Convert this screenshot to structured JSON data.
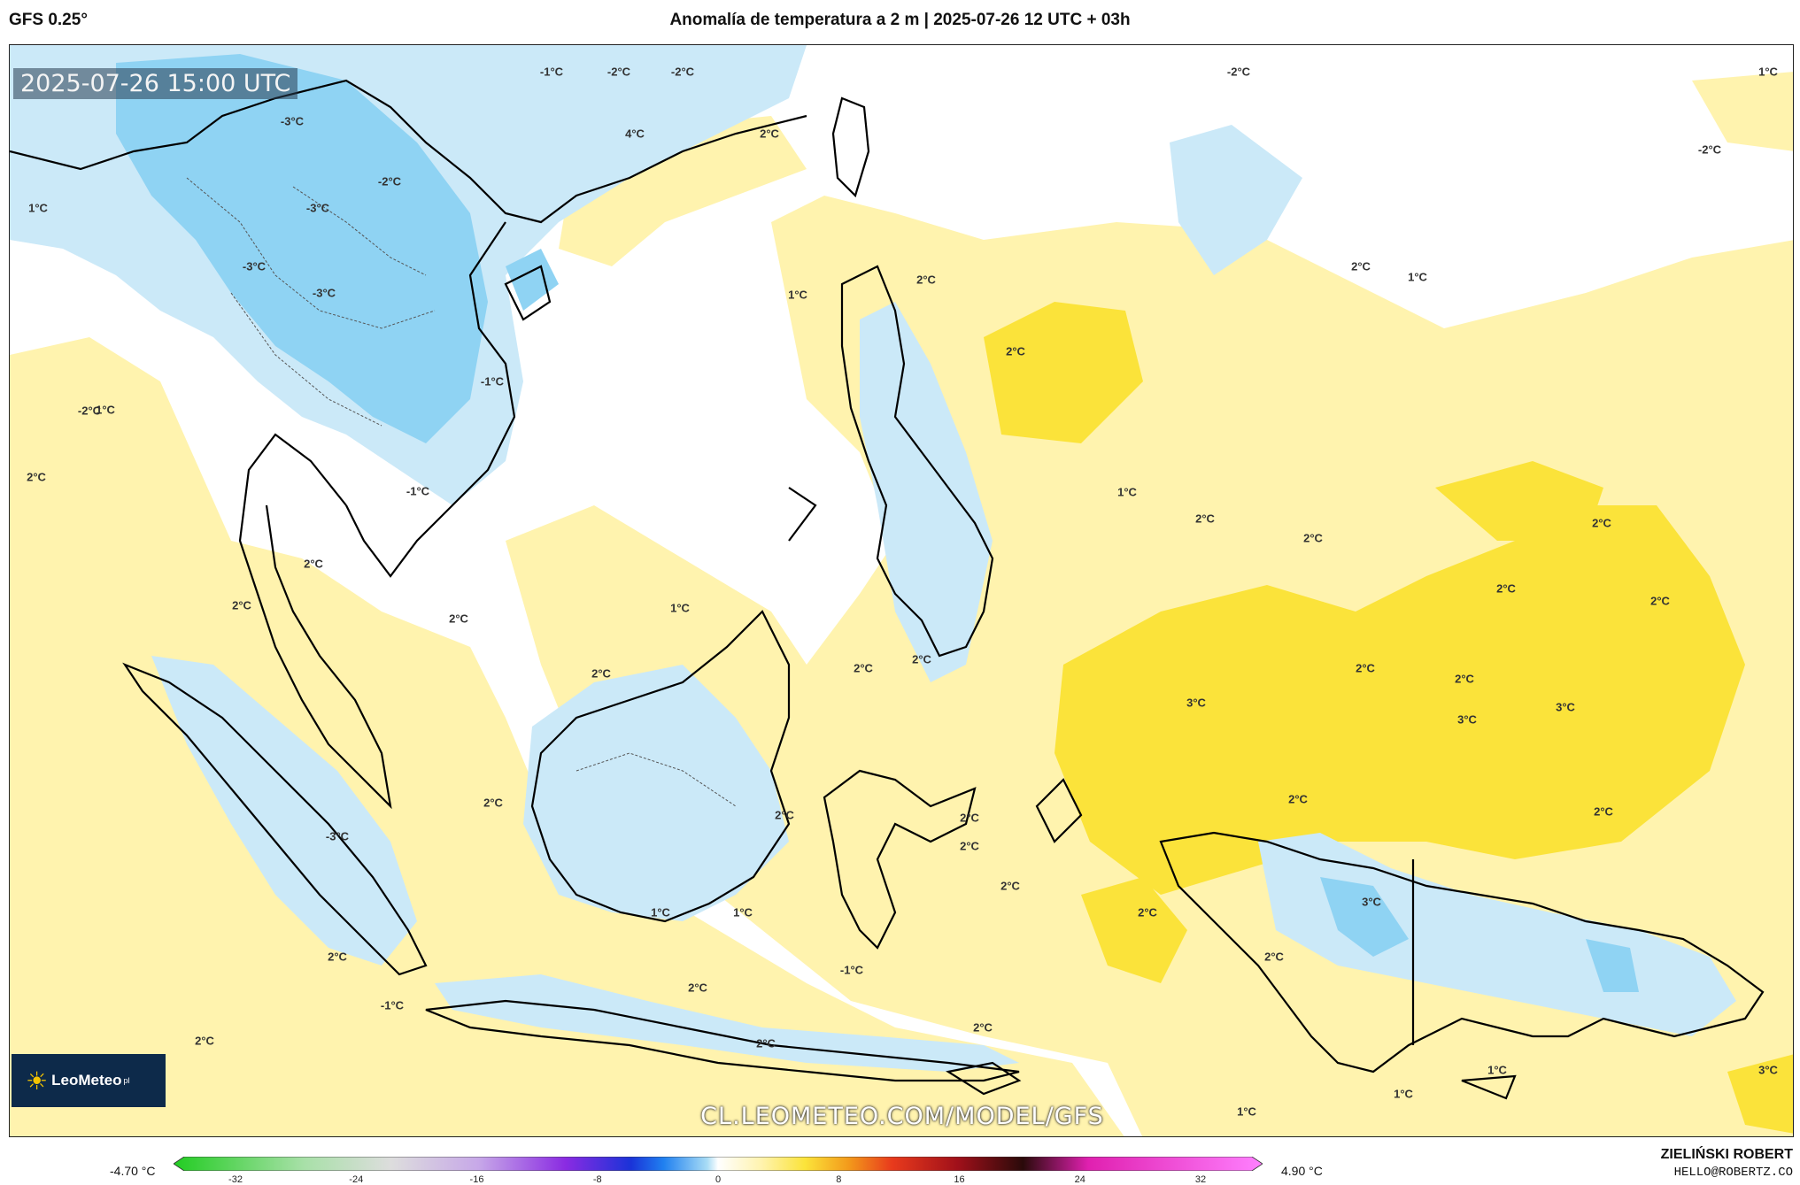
{
  "header": {
    "model": "GFS 0.25°",
    "title": "Anomalía de temperatura a 2 m | 2025-07-26 12 UTC + 03h"
  },
  "map": {
    "valid_time": "2025-07-26 15:00 UTC",
    "watermark": "CL.LEOMETEO.COM/MODEL/GFS",
    "logo": {
      "name": "LeoMeteo",
      "suffix": "pl"
    },
    "colors": {
      "cold": "#a8dcf5",
      "very_cold": "#6cc7f0",
      "warm": "#fff3ae",
      "hot": "#fbe33a",
      "land_line": "#000000"
    },
    "labels": [
      {
        "text": "-1°C"
      },
      {
        "text": "-2°C"
      },
      {
        "text": "-2°C"
      },
      {
        "text": "4°C"
      },
      {
        "text": "2°C"
      },
      {
        "text": "-2°C"
      },
      {
        "text": "1°C"
      },
      {
        "text": "-2°C"
      },
      {
        "text": "-3°C"
      },
      {
        "text": "-2°C"
      },
      {
        "text": "1°C"
      },
      {
        "text": "-3°C"
      },
      {
        "text": "-3°C"
      },
      {
        "text": "-3°C"
      },
      {
        "text": "2°C"
      },
      {
        "text": "1°C"
      },
      {
        "text": "2°C"
      },
      {
        "text": "2°C"
      },
      {
        "text": "1°C"
      },
      {
        "text": "-1°C"
      },
      {
        "text": "-2°C"
      },
      {
        "text": "1°C"
      },
      {
        "text": "2°C"
      },
      {
        "text": "1°C"
      },
      {
        "text": "-1°C"
      },
      {
        "text": "2°C"
      },
      {
        "text": "2°C"
      },
      {
        "text": "2°C"
      },
      {
        "text": "2°C"
      },
      {
        "text": "2°C"
      },
      {
        "text": "2°C"
      },
      {
        "text": "2°C"
      },
      {
        "text": "2°C"
      },
      {
        "text": "1°C"
      },
      {
        "text": "2°C"
      },
      {
        "text": "2°C"
      },
      {
        "text": "2°C"
      },
      {
        "text": "2°C"
      },
      {
        "text": "2°C"
      },
      {
        "text": "3°C"
      },
      {
        "text": "3°C"
      },
      {
        "text": "3°C"
      },
      {
        "text": "2°C"
      },
      {
        "text": "2°C"
      },
      {
        "text": "2°C"
      },
      {
        "text": "2°C"
      },
      {
        "text": "2°C"
      },
      {
        "text": "2°C"
      },
      {
        "text": "2°C"
      },
      {
        "text": "1°C"
      },
      {
        "text": "1°C"
      },
      {
        "text": "-1°C"
      },
      {
        "text": "2°C"
      },
      {
        "text": "-3°C"
      },
      {
        "text": "3°C"
      },
      {
        "text": "2°C"
      },
      {
        "text": "2°C"
      },
      {
        "text": "2°C"
      },
      {
        "text": "-1°C"
      },
      {
        "text": "2°C"
      },
      {
        "text": "2°C"
      },
      {
        "text": "2°C"
      },
      {
        "text": "1°C"
      },
      {
        "text": "1°C"
      },
      {
        "text": "1°C"
      },
      {
        "text": "3°C"
      }
    ]
  },
  "colorbar": {
    "min_label": "-4.70 °C",
    "max_label": "4.90 °C",
    "ticks": [
      "-32",
      "-24",
      "-16",
      "-8",
      "0",
      "8",
      "16",
      "24",
      "32"
    ]
  },
  "footer": {
    "author": "ZIELIŃSKI ROBERT",
    "email": "HELLO@ROBERTZ.CO"
  }
}
